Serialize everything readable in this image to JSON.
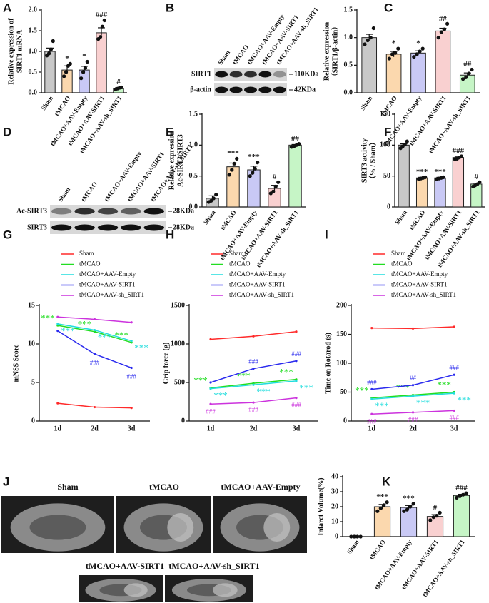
{
  "chart_data": [
    {
      "panel": "A",
      "type": "bar",
      "ylabel": [
        "Relative expression of",
        "SIRT1 mRNA"
      ],
      "categories": [
        "Sham",
        "tMCAO",
        "tMCAO+AAV-Empty",
        "tMCAO+AAV-SIRT1",
        "tMCAO+AAV-sh_SIRT1"
      ],
      "values": [
        1.0,
        0.55,
        0.55,
        1.45,
        0.1
      ],
      "errors": [
        0.08,
        0.1,
        0.09,
        0.12,
        0.02
      ],
      "points": [
        [
          0.9,
          0.95,
          1.05,
          1.25
        ],
        [
          0.4,
          0.5,
          0.65,
          0.7
        ],
        [
          0.35,
          0.5,
          0.6,
          0.75
        ],
        [
          1.3,
          1.35,
          1.6,
          1.75
        ],
        [
          0.08,
          0.1,
          0.12,
          0.13
        ]
      ],
      "annotations": [
        null,
        "*",
        "*",
        "###",
        "#"
      ],
      "colors": [
        "#c8c8c8",
        "#fbd8ae",
        "#c9c9f5",
        "#f9d0d0",
        "#c6f5c6"
      ],
      "ylim": [
        0,
        2
      ],
      "yticks": [
        {
          "value": 0,
          "label": "0.0"
        },
        0.5,
        {
          "value": 1,
          "label": "1.0"
        },
        1.5,
        {
          "value": 2,
          "label": "2.0"
        }
      ]
    },
    {
      "panel": "C",
      "type": "bar",
      "ylabel": [
        "Relative expression",
        "（SIRT1/β-actin）"
      ],
      "categories": [
        "Sham",
        "tMCAO",
        "tMCAO+AAV-Empty",
        "tMCAO+AAV-SIRT1",
        "tMCAO+AAV-sh_SIRT1"
      ],
      "values": [
        1.0,
        0.7,
        0.72,
        1.12,
        0.32
      ],
      "errors": [
        0.06,
        0.05,
        0.04,
        0.05,
        0.04
      ],
      "points": [
        [
          0.88,
          0.95,
          1.0,
          1.17
        ],
        [
          0.62,
          0.7,
          0.72,
          0.8
        ],
        [
          0.65,
          0.7,
          0.75,
          0.8
        ],
        [
          1.0,
          1.1,
          1.15,
          1.25
        ],
        [
          0.25,
          0.28,
          0.35,
          0.42
        ]
      ],
      "annotations": [
        null,
        "*",
        "*",
        "##",
        "##"
      ],
      "colors": [
        "#c8c8c8",
        "#fbd8ae",
        "#c9c9f5",
        "#f9d0d0",
        "#c6f5c6"
      ],
      "ylim": [
        0,
        1.5
      ],
      "yticks": [
        {
          "value": 0,
          "label": "0.0"
        },
        0.5,
        {
          "value": 1,
          "label": "1.0"
        },
        1.5
      ]
    },
    {
      "panel": "E",
      "type": "bar",
      "ylabel": [
        "Relative expression",
        "Ac-SIRT3/SIRT3"
      ],
      "categories": [
        "Sham",
        "tMCAO",
        "tMCAO+AAV-Empty",
        "tMCAO+AAV-SIRT1",
        "tMCAO+AAV-sh_SIRT1"
      ],
      "values": [
        0.14,
        0.65,
        0.6,
        0.3,
        1.0
      ],
      "errors": [
        0.04,
        0.06,
        0.06,
        0.05,
        0.01
      ],
      "points": [
        [
          0.08,
          0.1,
          0.14,
          0.2
        ],
        [
          0.52,
          0.6,
          0.7,
          0.78
        ],
        [
          0.5,
          0.55,
          0.62,
          0.72
        ],
        [
          0.22,
          0.25,
          0.33,
          0.4
        ],
        [
          0.97,
          0.98,
          1.0,
          1.02
        ]
      ],
      "annotations": [
        null,
        "***",
        "***",
        "#",
        "##"
      ],
      "colors": [
        "#c8c8c8",
        "#fbd8ae",
        "#c9c9f5",
        "#f9d0d0",
        "#c6f5c6"
      ],
      "ylim": [
        0,
        1.5
      ],
      "yticks": [
        {
          "value": 0,
          "label": "0.0"
        },
        0.5,
        {
          "value": 1,
          "label": "1.0"
        },
        1.5
      ]
    },
    {
      "panel": "F",
      "type": "bar",
      "ylabel": [
        "SIRT3 activity",
        "（% / Sham）"
      ],
      "categories": [
        "Sham",
        "tMCAO",
        "tMCAO+AAV-Empty",
        "tMCAO+AAV-SIRT1",
        "tMCAO+AAV-sh_SIRT1"
      ],
      "values": [
        100,
        47,
        47,
        80,
        37
      ],
      "errors": [
        2,
        1,
        1,
        1,
        1.5
      ],
      "points": [
        [
          95,
          98,
          101,
          106
        ],
        [
          45,
          46,
          47,
          48
        ],
        [
          45,
          46,
          47,
          48
        ],
        [
          77,
          78,
          80,
          82
        ],
        [
          33,
          35,
          37,
          40
        ]
      ],
      "annotations": [
        null,
        "***",
        "***",
        "###",
        "#"
      ],
      "colors": [
        "#c8c8c8",
        "#fbd8ae",
        "#c9c9f5",
        "#f9d0d0",
        "#c6f5c6"
      ],
      "ylim": [
        0,
        150
      ],
      "yticks": [
        0,
        50,
        100,
        150
      ]
    },
    {
      "panel": "K",
      "type": "bar",
      "ylabel": [
        "Infarct Volume(%)"
      ],
      "categories": [
        "Sham",
        "tMCAO",
        "tMCAO+AAV-Empty",
        "tMCAO+AAV-SIRT1",
        "tMCAO+AAV-sh_SIRT1"
      ],
      "values": [
        0,
        20,
        19.5,
        13.5,
        27.5
      ],
      "errors": [
        0,
        1.5,
        1.3,
        1.2,
        0.8
      ],
      "points": [
        [
          0,
          0,
          0,
          0
        ],
        [
          17,
          19,
          21,
          23
        ],
        [
          17,
          18,
          20,
          22
        ],
        [
          11,
          13,
          14,
          16
        ],
        [
          26,
          27,
          28,
          29
        ]
      ],
      "annotations": [
        null,
        "***",
        "***",
        "#",
        "###"
      ],
      "colors": [
        "#c8c8c8",
        "#fbd8ae",
        "#c9c9f5",
        "#f9d0d0",
        "#c6f5c6"
      ],
      "ylim": [
        0,
        40
      ],
      "yticks": [
        0,
        10,
        20,
        30,
        40
      ]
    },
    {
      "panel": "G",
      "type": "line",
      "ylabel": [
        "mNSS Score"
      ],
      "categories": [
        "1d",
        "2d",
        "3d"
      ],
      "legend": "top",
      "ylim": [
        0,
        15
      ],
      "yticks": [
        0,
        5,
        10,
        15
      ],
      "series": [
        {
          "name": "Sham",
          "color": "#ff2a2a",
          "values": [
            2.3,
            1.8,
            1.7
          ],
          "annotations": [
            null,
            null,
            null
          ]
        },
        {
          "name": "tMCAO",
          "color": "#22dd22",
          "values": [
            12.4,
            11.6,
            10.2
          ],
          "annotations": [
            "***",
            "***",
            "***"
          ]
        },
        {
          "name": "tMCAO+AAV-Empty",
          "color": "#22dddd",
          "values": [
            12.6,
            11.8,
            10.4
          ],
          "annotations": [
            "***",
            "***",
            "***"
          ]
        },
        {
          "name": "tMCAO+AAV-SIRT1",
          "color": "#2a2aee",
          "values": [
            11.7,
            8.7,
            6.9
          ],
          "annotations": [
            null,
            "###",
            "###"
          ]
        },
        {
          "name": "tMCAO+AAV-sh_SIRT1",
          "color": "#cc33dd",
          "values": [
            13.5,
            13.2,
            12.8
          ],
          "annotations": [
            null,
            null,
            null
          ]
        }
      ]
    },
    {
      "panel": "H",
      "type": "line",
      "ylabel": [
        "Grip force (g)"
      ],
      "categories": [
        "1d",
        "2d",
        "3d"
      ],
      "legend": "top",
      "ylim": [
        0,
        1500
      ],
      "yticks": [
        0,
        500,
        1000,
        1500
      ],
      "series": [
        {
          "name": "Sham",
          "color": "#ff2a2a",
          "values": [
            1060,
            1100,
            1160
          ],
          "annotations": [
            null,
            null,
            null
          ]
        },
        {
          "name": "tMCAO",
          "color": "#22dd22",
          "values": [
            430,
            490,
            540
          ],
          "annotations": [
            "***",
            "***",
            "***"
          ]
        },
        {
          "name": "tMCAO+AAV-Empty",
          "color": "#22dddd",
          "values": [
            420,
            470,
            520
          ],
          "annotations": [
            "***",
            "***",
            "***"
          ]
        },
        {
          "name": "tMCAO+AAV-SIRT1",
          "color": "#2a2aee",
          "values": [
            500,
            680,
            780
          ],
          "annotations": [
            null,
            "###",
            "###"
          ]
        },
        {
          "name": "tMCAO+AAV-sh_SIRT1",
          "color": "#cc33dd",
          "values": [
            220,
            240,
            300
          ],
          "annotations": [
            "###",
            "###",
            "###"
          ]
        }
      ]
    },
    {
      "panel": "I",
      "type": "line",
      "ylabel": [
        "Time on Rotarod (s)"
      ],
      "categories": [
        "1d",
        "2d",
        "3d"
      ],
      "legend": "top",
      "ylim": [
        0,
        200
      ],
      "yticks": [
        0,
        50,
        100,
        150,
        200
      ],
      "series": [
        {
          "name": "Sham",
          "color": "#ff2a2a",
          "values": [
            161,
            160,
            163
          ],
          "annotations": [
            null,
            null,
            null
          ]
        },
        {
          "name": "tMCAO",
          "color": "#22dd22",
          "values": [
            40,
            45,
            50
          ],
          "annotations": [
            "***",
            "***",
            "***"
          ]
        },
        {
          "name": "tMCAO+AAV-Empty",
          "color": "#22dddd",
          "values": [
            38,
            43,
            48
          ],
          "annotations": [
            "***",
            "***",
            "***"
          ]
        },
        {
          "name": "tMCAO+AAV-SIRT1",
          "color": "#2a2aee",
          "values": [
            55,
            62,
            80
          ],
          "annotations": [
            "###",
            "##",
            "###"
          ]
        },
        {
          "name": "tMCAO+AAV-sh_SIRT1",
          "color": "#cc33dd",
          "values": [
            12,
            15,
            18
          ],
          "annotations": [
            "###",
            "###",
            "###"
          ]
        }
      ]
    }
  ],
  "blots": [
    {
      "panel": "B",
      "lanes": [
        "Sham",
        "tMCAO",
        "tMCAO+AAV-Empty",
        "tMCAO+AAV-SIRT1",
        "tMCAO+AAV-sh_SIRT1"
      ],
      "rows": [
        {
          "label": "SIRT1",
          "size": "110KDa"
        },
        {
          "label": "β-actin",
          "size": "42KDa"
        }
      ]
    },
    {
      "panel": "D",
      "lanes": [
        "Sham",
        "tMCAO",
        "tMCAO+AAV-Empty",
        "tMCAO+AAV-SIRT1",
        "tMCAO+AAV-sh_SIRT1"
      ],
      "rows": [
        {
          "label": "Ac-SIRT3",
          "size": "28KDa"
        },
        {
          "label": "SIRT3",
          "size": "28KDa"
        }
      ]
    }
  ],
  "mri": {
    "panel": "J",
    "labels": [
      "Sham",
      "tMCAO",
      "tMCAO+AAV-Empty",
      "tMCAO+AAV-SIRT1",
      "tMCAO+AAV-sh_SIRT1"
    ]
  }
}
